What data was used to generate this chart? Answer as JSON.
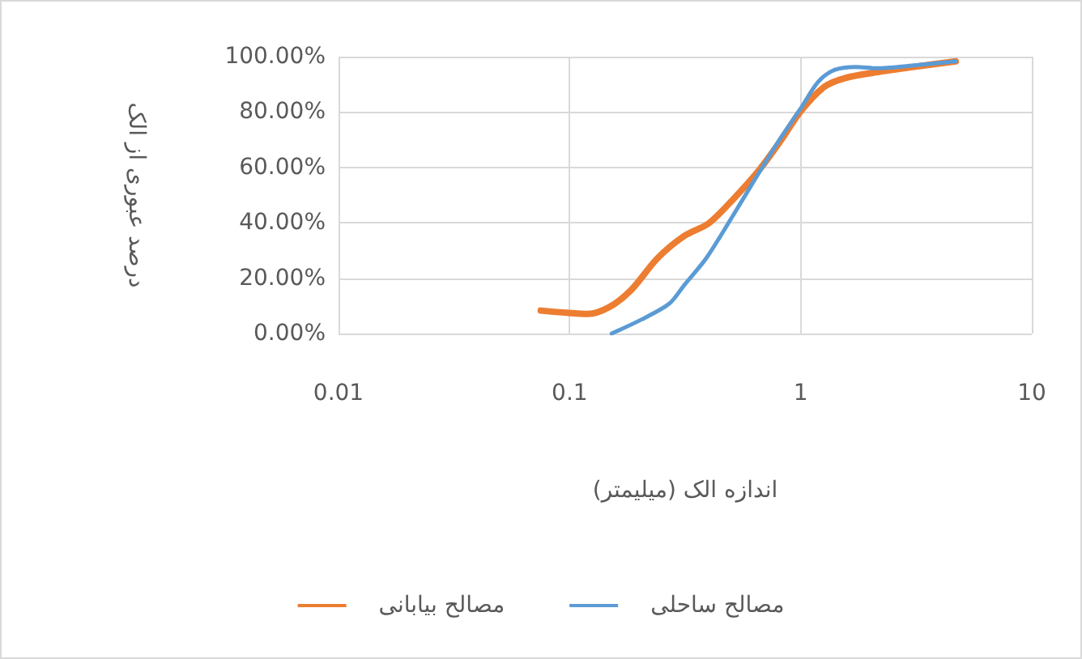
{
  "chart_data": {
    "type": "line",
    "xlabel": "اندازه الک (میلیمتر)",
    "ylabel": "درصد عبوری از الک",
    "log": "x",
    "grid": true,
    "legend": "bottom",
    "marker": "none",
    "line_style": "solid",
    "xlim": [
      0.01,
      10
    ],
    "xticks": [
      0.01,
      0.1,
      1,
      10
    ],
    "ylim": [
      0,
      100
    ],
    "yticks": [
      {
        "value": 0,
        "label": "0.00%"
      },
      {
        "value": 20,
        "label": "20.00%"
      },
      {
        "value": 40,
        "label": "40.00%"
      },
      {
        "value": 60,
        "label": "60.00%"
      },
      {
        "value": 80,
        "label": "80.00%"
      },
      {
        "value": 100,
        "label": "100.00%"
      }
    ],
    "series": [
      {
        "name": "مصالح بیابانی",
        "color": "#ed7d31",
        "x": [
          0.075,
          0.097,
          0.12,
          0.148,
          0.184,
          0.24,
          0.314,
          0.4,
          0.51,
          0.66,
          0.82,
          1.0,
          1.26,
          1.56,
          2.15,
          2.96,
          4.69
        ],
        "values": [
          8.3,
          7.5,
          7.1,
          9.5,
          15.6,
          27.2,
          35.3,
          39.8,
          48.5,
          59,
          69.7,
          80.3,
          89,
          92.3,
          94.4,
          96.1,
          98.3
        ]
      },
      {
        "name": "مصالح ساحلی",
        "color": "#5b9bd5",
        "x": [
          0.152,
          0.204,
          0.27,
          0.314,
          0.39,
          0.51,
          0.66,
          0.82,
          1.0,
          1.19,
          1.4,
          1.73,
          2.15,
          2.96,
          4.69
        ],
        "values": [
          0,
          5,
          10.8,
          17.6,
          27.2,
          42.7,
          58.1,
          70.7,
          81.3,
          90.9,
          95.2,
          96.3,
          95.8,
          96.7,
          98.3
        ]
      }
    ]
  }
}
